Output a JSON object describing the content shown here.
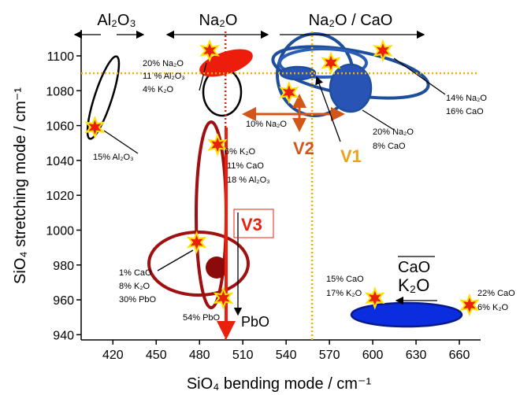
{
  "chart_data": {
    "type": "scatter",
    "x_label": "SiO₄ bending mode / cm⁻¹",
    "y_label": "SiO₄ stretching mode / cm⁻¹",
    "xlim": [
      398,
      672
    ],
    "ylim": [
      937,
      1114
    ],
    "xticks": [
      420,
      450,
      480,
      510,
      540,
      570,
      600,
      630,
      660
    ],
    "yticks": [
      940,
      960,
      980,
      1000,
      1020,
      1040,
      1060,
      1080,
      1100
    ],
    "points": {
      "color": "#e8200c",
      "x": [
        407.5,
        487,
        607,
        571,
        542,
        492.5,
        478,
        496.5,
        601.5,
        667
      ],
      "y": [
        1059,
        1103,
        1103,
        1096,
        1079,
        1049,
        993,
        961,
        961,
        957
      ]
    },
    "reference_lines": [
      {
        "axis": "x",
        "value": 498,
        "color": "#e8200c"
      },
      {
        "axis": "x",
        "value": 558,
        "color": "#f0b000"
      },
      {
        "axis": "y",
        "value": 1090,
        "color": "#f0b000"
      }
    ],
    "annotations": [
      "Al₂O₃",
      "Na₂O",
      "Na₂O / CaO",
      "20% Na₂O",
      "11 % Al₂O₃",
      "4% K₂O",
      "15% Al₂O₃",
      "10% Na₂O",
      "6% K₂O",
      "11% CaO",
      "18 % Al₂O₃",
      "V2",
      "V1",
      "V3",
      "14% Na₂O",
      "16% CaO",
      "20% Na₂O",
      "8% CaO",
      "1% CaO",
      "8% K₂O",
      "30% PbO",
      "54% PbO",
      "PbO",
      "CaO",
      "K₂O",
      "15% CaO",
      "17% K₂O",
      "22% CaO",
      "6% K₂O"
    ]
  }
}
